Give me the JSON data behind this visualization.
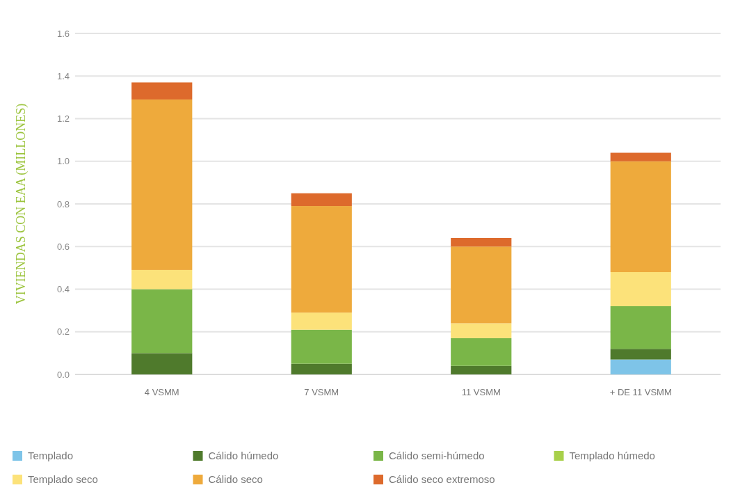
{
  "chart_data": {
    "type": "bar",
    "stacked": true,
    "ylabel": "VIVIENDAS CON EAA (MILLONES)",
    "categories": [
      "4 VSMM",
      "7 VSMM",
      "11 VSMM",
      "+ DE 11 VSMM"
    ],
    "series": [
      {
        "name": "Templado",
        "color": "#7ec4e8",
        "values": [
          0,
          0,
          0,
          0.07
        ]
      },
      {
        "name": "Cálido húmedo",
        "color": "#4f7a2c",
        "values": [
          0.1,
          0.05,
          0.04,
          0.05
        ]
      },
      {
        "name": "Cálido semi-húmedo",
        "color": "#7ab648",
        "values": [
          0.3,
          0.16,
          0.13,
          0.2
        ]
      },
      {
        "name": "Templado húmedo",
        "color": "#a8d04a",
        "values": [
          0,
          0,
          0,
          0
        ]
      },
      {
        "name": "Templado seco",
        "color": "#fce27a",
        "values": [
          0.09,
          0.08,
          0.07,
          0.16
        ]
      },
      {
        "name": "Cálido seco",
        "color": "#eeaa3c",
        "values": [
          0.8,
          0.5,
          0.36,
          0.52
        ]
      },
      {
        "name": "Cálido seco extremoso",
        "color": "#dd6a2c",
        "values": [
          0.08,
          0.06,
          0.04,
          0.04
        ]
      }
    ],
    "ylim": [
      0,
      1.6
    ],
    "yticks": [
      {
        "value": 0,
        "label": "0.0"
      },
      {
        "value": 0.2,
        "label": "0.2"
      },
      {
        "value": 0.4,
        "label": "0.4"
      },
      {
        "value": 0.6,
        "label": "0.6"
      },
      {
        "value": 0.8,
        "label": "0.8"
      },
      {
        "value": 1,
        "label": "1.0"
      },
      {
        "value": 1.2,
        "label": "1.2"
      },
      {
        "value": 1.4,
        "label": "1.4"
      },
      {
        "value": 1.6,
        "label": "1.6"
      }
    ],
    "grid": "y",
    "legend": "bottom"
  }
}
